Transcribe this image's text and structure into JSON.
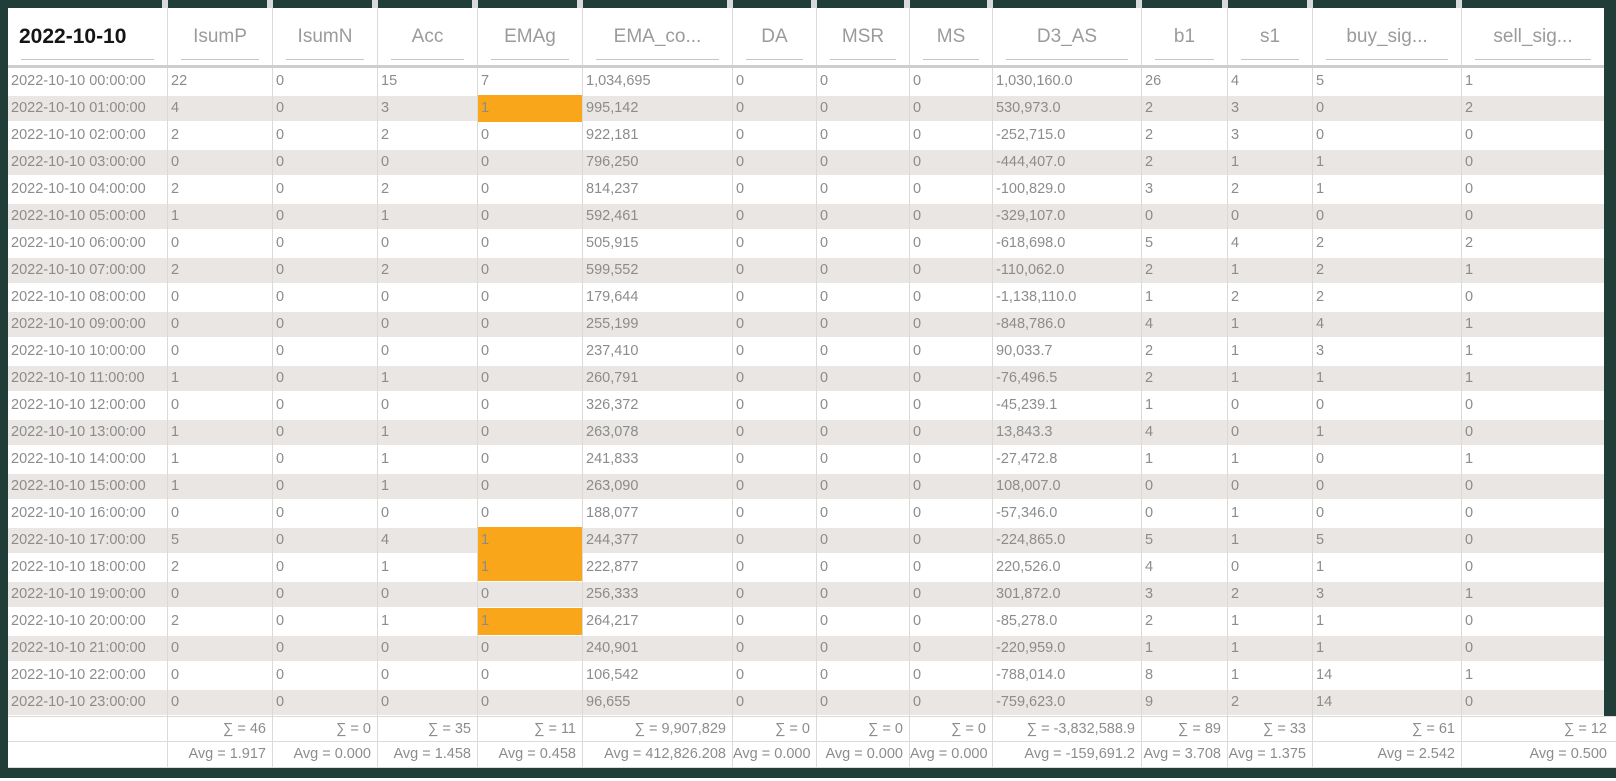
{
  "colors": {
    "frame_border": "#203d37",
    "highlight": "#f9a61a",
    "row_stripe": "#e9e6e3"
  },
  "table": {
    "date_label": "2022-10-10",
    "columns": [
      "IsumP",
      "IsumN",
      "Acc",
      "EMAg",
      "EMA_co...",
      "DA",
      "MSR",
      "MS",
      "D3_AS",
      "b1",
      "s1",
      "buy_sig...",
      "sell_sig..."
    ],
    "rows": [
      {
        "time": "2022-10-10 00:00:00",
        "values": [
          "22",
          "0",
          "15",
          "7",
          "1,034,695",
          "0",
          "0",
          "0",
          "1,030,160.0",
          "26",
          "4",
          "5",
          "1"
        ],
        "highlight_emag": false
      },
      {
        "time": "2022-10-10 01:00:00",
        "values": [
          "4",
          "0",
          "3",
          "1",
          "995,142",
          "0",
          "0",
          "0",
          "530,973.0",
          "2",
          "3",
          "0",
          "2"
        ],
        "highlight_emag": true
      },
      {
        "time": "2022-10-10 02:00:00",
        "values": [
          "2",
          "0",
          "2",
          "0",
          "922,181",
          "0",
          "0",
          "0",
          "-252,715.0",
          "2",
          "3",
          "0",
          "0"
        ],
        "highlight_emag": false
      },
      {
        "time": "2022-10-10 03:00:00",
        "values": [
          "0",
          "0",
          "0",
          "0",
          "796,250",
          "0",
          "0",
          "0",
          "-444,407.0",
          "2",
          "1",
          "1",
          "0"
        ],
        "highlight_emag": false
      },
      {
        "time": "2022-10-10 04:00:00",
        "values": [
          "2",
          "0",
          "2",
          "0",
          "814,237",
          "0",
          "0",
          "0",
          "-100,829.0",
          "3",
          "2",
          "1",
          "0"
        ],
        "highlight_emag": false
      },
      {
        "time": "2022-10-10 05:00:00",
        "values": [
          "1",
          "0",
          "1",
          "0",
          "592,461",
          "0",
          "0",
          "0",
          "-329,107.0",
          "0",
          "0",
          "0",
          "0"
        ],
        "highlight_emag": false
      },
      {
        "time": "2022-10-10 06:00:00",
        "values": [
          "0",
          "0",
          "0",
          "0",
          "505,915",
          "0",
          "0",
          "0",
          "-618,698.0",
          "5",
          "4",
          "2",
          "2"
        ],
        "highlight_emag": false
      },
      {
        "time": "2022-10-10 07:00:00",
        "values": [
          "2",
          "0",
          "2",
          "0",
          "599,552",
          "0",
          "0",
          "0",
          "-110,062.0",
          "2",
          "1",
          "2",
          "1"
        ],
        "highlight_emag": false
      },
      {
        "time": "2022-10-10 08:00:00",
        "values": [
          "0",
          "0",
          "0",
          "0",
          "179,644",
          "0",
          "0",
          "0",
          "-1,138,110.0",
          "1",
          "2",
          "2",
          "0"
        ],
        "highlight_emag": false
      },
      {
        "time": "2022-10-10 09:00:00",
        "values": [
          "0",
          "0",
          "0",
          "0",
          "255,199",
          "0",
          "0",
          "0",
          "-848,786.0",
          "4",
          "1",
          "4",
          "1"
        ],
        "highlight_emag": false
      },
      {
        "time": "2022-10-10 10:00:00",
        "values": [
          "0",
          "0",
          "0",
          "0",
          "237,410",
          "0",
          "0",
          "0",
          "90,033.7",
          "2",
          "1",
          "3",
          "1"
        ],
        "highlight_emag": false
      },
      {
        "time": "2022-10-10 11:00:00",
        "values": [
          "1",
          "0",
          "1",
          "0",
          "260,791",
          "0",
          "0",
          "0",
          "-76,496.5",
          "2",
          "1",
          "1",
          "1"
        ],
        "highlight_emag": false
      },
      {
        "time": "2022-10-10 12:00:00",
        "values": [
          "0",
          "0",
          "0",
          "0",
          "326,372",
          "0",
          "0",
          "0",
          "-45,239.1",
          "1",
          "0",
          "0",
          "0"
        ],
        "highlight_emag": false
      },
      {
        "time": "2022-10-10 13:00:00",
        "values": [
          "1",
          "0",
          "1",
          "0",
          "263,078",
          "0",
          "0",
          "0",
          "13,843.3",
          "4",
          "0",
          "1",
          "0"
        ],
        "highlight_emag": false
      },
      {
        "time": "2022-10-10 14:00:00",
        "values": [
          "1",
          "0",
          "1",
          "0",
          "241,833",
          "0",
          "0",
          "0",
          "-27,472.8",
          "1",
          "1",
          "0",
          "1"
        ],
        "highlight_emag": false
      },
      {
        "time": "2022-10-10 15:00:00",
        "values": [
          "1",
          "0",
          "1",
          "0",
          "263,090",
          "0",
          "0",
          "0",
          "108,007.0",
          "0",
          "0",
          "0",
          "0"
        ],
        "highlight_emag": false
      },
      {
        "time": "2022-10-10 16:00:00",
        "values": [
          "0",
          "0",
          "0",
          "0",
          "188,077",
          "0",
          "0",
          "0",
          "-57,346.0",
          "0",
          "1",
          "0",
          "0"
        ],
        "highlight_emag": false
      },
      {
        "time": "2022-10-10 17:00:00",
        "values": [
          "5",
          "0",
          "4",
          "1",
          "244,377",
          "0",
          "0",
          "0",
          "-224,865.0",
          "5",
          "1",
          "5",
          "0"
        ],
        "highlight_emag": true
      },
      {
        "time": "2022-10-10 18:00:00",
        "values": [
          "2",
          "0",
          "1",
          "1",
          "222,877",
          "0",
          "0",
          "0",
          "220,526.0",
          "4",
          "0",
          "1",
          "0"
        ],
        "highlight_emag": true
      },
      {
        "time": "2022-10-10 19:00:00",
        "values": [
          "0",
          "0",
          "0",
          "0",
          "256,333",
          "0",
          "0",
          "0",
          "301,872.0",
          "3",
          "2",
          "3",
          "1"
        ],
        "highlight_emag": false
      },
      {
        "time": "2022-10-10 20:00:00",
        "values": [
          "2",
          "0",
          "1",
          "1",
          "264,217",
          "0",
          "0",
          "0",
          "-85,278.0",
          "2",
          "1",
          "1",
          "0"
        ],
        "highlight_emag": true
      },
      {
        "time": "2022-10-10 21:00:00",
        "values": [
          "0",
          "0",
          "0",
          "0",
          "240,901",
          "0",
          "0",
          "0",
          "-220,959.0",
          "1",
          "1",
          "1",
          "0"
        ],
        "highlight_emag": false
      },
      {
        "time": "2022-10-10 22:00:00",
        "values": [
          "0",
          "0",
          "0",
          "0",
          "106,542",
          "0",
          "0",
          "0",
          "-788,014.0",
          "8",
          "1",
          "14",
          "1"
        ],
        "highlight_emag": false
      },
      {
        "time": "2022-10-10 23:00:00",
        "values": [
          "0",
          "0",
          "0",
          "0",
          "96,655",
          "0",
          "0",
          "0",
          "-759,623.0",
          "9",
          "2",
          "14",
          "0"
        ],
        "highlight_emag": false
      }
    ],
    "summary": {
      "sum": [
        "∑ = 46",
        "∑ = 0",
        "∑ = 35",
        "∑ = 11",
        "∑ = 9,907,829",
        "∑ = 0",
        "∑ = 0",
        "∑ = 0",
        "∑ = -3,832,588.9",
        "∑ = 89",
        "∑ = 33",
        "∑ = 61",
        "∑ = 12"
      ],
      "avg": [
        "Avg = 1.917",
        "Avg = 0.000",
        "Avg = 1.458",
        "Avg = 0.458",
        "Avg = 412,826.208",
        "Avg = 0.000",
        "Avg = 0.000",
        "Avg = 0.000",
        "Avg = -159,691.2",
        "Avg = 3.708",
        "Avg = 1.375",
        "Avg = 2.542",
        "Avg = 0.500"
      ]
    }
  }
}
